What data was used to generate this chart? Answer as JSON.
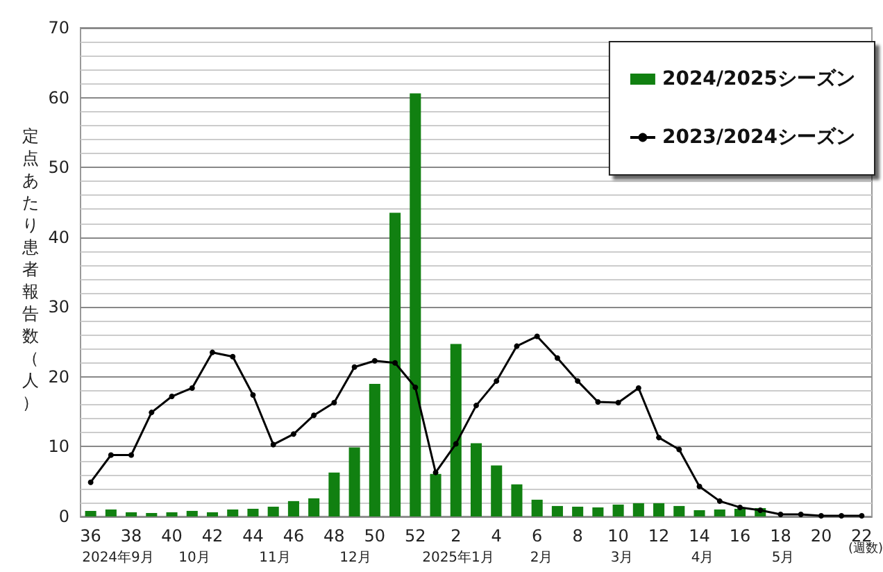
{
  "chart_data": {
    "type": "bar",
    "ylabel": "定点あたり患者報告数（人）",
    "categories": [
      "36",
      null,
      "38",
      null,
      "40",
      null,
      "42",
      null,
      "44",
      null,
      "46",
      null,
      "48",
      null,
      "50",
      null,
      "52",
      null,
      "2",
      null,
      "4",
      null,
      "6",
      null,
      "8",
      null,
      "10",
      null,
      "12",
      null,
      "14",
      null,
      "16",
      null,
      "18",
      null,
      "20",
      null,
      "22"
    ],
    "series": [
      {
        "name": "2024/2025シーズン",
        "color": "#118011",
        "values": [
          0.8,
          1.0,
          0.6,
          0.5,
          0.6,
          0.8,
          0.6,
          1.0,
          1.1,
          1.4,
          2.2,
          2.6,
          6.3,
          9.9,
          19.0,
          43.5,
          60.6,
          6.1,
          24.7,
          10.5,
          7.3,
          4.6,
          2.4,
          1.5,
          1.4,
          1.3,
          1.7,
          1.9,
          1.9,
          1.5,
          0.9,
          1.0,
          1.1,
          1.2,
          null,
          null,
          null,
          null,
          null
        ]
      },
      {
        "name": "2023/2024シーズン",
        "type": "line",
        "color": "#000000",
        "marker": "circle",
        "values": [
          4.9,
          8.8,
          8.8,
          14.9,
          17.2,
          18.4,
          23.5,
          22.9,
          17.4,
          10.3,
          11.8,
          14.5,
          16.3,
          21.4,
          22.3,
          22.0,
          18.5,
          6.3,
          10.4,
          15.9,
          19.4,
          24.4,
          25.8,
          22.7,
          19.4,
          16.4,
          16.3,
          18.4,
          11.3,
          9.6,
          4.3,
          2.2,
          1.3,
          0.9,
          0.3,
          0.3,
          0.1,
          0.1,
          0.1
        ]
      }
    ],
    "ylim": [
      0,
      70
    ],
    "yticks": [
      0,
      10,
      20,
      30,
      40,
      50,
      60,
      70
    ],
    "grid": "y",
    "legend": "top right",
    "annotations": [
      "2024年9月",
      "10月",
      "11月",
      "12月",
      "2025年1月",
      "2月",
      "3月",
      "4月",
      "5月",
      "(週数)"
    ]
  }
}
